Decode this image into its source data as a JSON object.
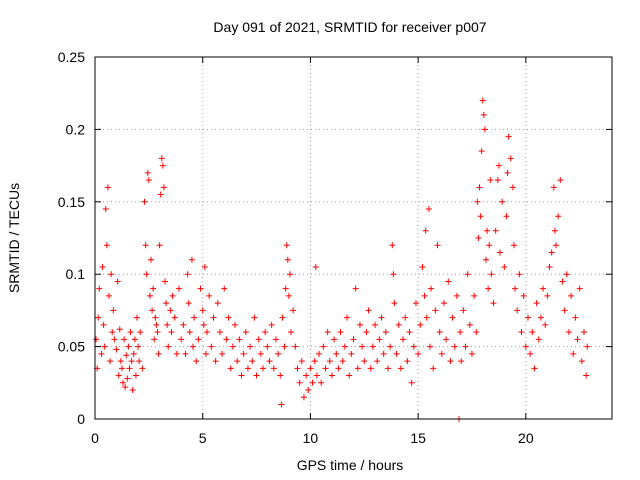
{
  "chart_data": {
    "type": "scatter",
    "title": "Day 091 of 2021, SRMTID for receiver p007",
    "xlabel": "GPS time / hours",
    "ylabel": "SRMTID / TECUs",
    "xlim": [
      0,
      24
    ],
    "ylim": [
      0,
      0.25
    ],
    "xticks": [
      0,
      5,
      10,
      15,
      20
    ],
    "xtick_labels": [
      "0",
      "5",
      "10",
      "15",
      "20"
    ],
    "yticks": [
      0,
      0.05,
      0.1,
      0.15,
      0.2,
      0.25
    ],
    "ytick_labels": [
      "0",
      "0.05",
      "0.1",
      "0.15",
      "0.2",
      "0.25"
    ],
    "grid": true,
    "marker": "+",
    "color": "#ff0000",
    "series": [
      {
        "name": "SRMTID",
        "points": [
          [
            0.05,
            0.055
          ],
          [
            0.1,
            0.035
          ],
          [
            0.15,
            0.07
          ],
          [
            0.2,
            0.09
          ],
          [
            0.3,
            0.045
          ],
          [
            0.35,
            0.105
          ],
          [
            0.4,
            0.065
          ],
          [
            0.45,
            0.05
          ],
          [
            0.5,
            0.145
          ],
          [
            0.55,
            0.12
          ],
          [
            0.6,
            0.16
          ],
          [
            0.65,
            0.085
          ],
          [
            0.7,
            0.04
          ],
          [
            0.75,
            0.1
          ],
          [
            0.8,
            0.06
          ],
          [
            0.85,
            0.075
          ],
          [
            0.9,
            0.055
          ],
          [
            1.0,
            0.048
          ],
          [
            1.05,
            0.095
          ],
          [
            1.1,
            0.03
          ],
          [
            1.15,
            0.062
          ],
          [
            1.2,
            0.04
          ],
          [
            1.25,
            0.035
          ],
          [
            1.3,
            0.025
          ],
          [
            1.35,
            0.055
          ],
          [
            1.4,
            0.022
          ],
          [
            1.45,
            0.044
          ],
          [
            1.5,
            0.028
          ],
          [
            1.55,
            0.05
          ],
          [
            1.6,
            0.035
          ],
          [
            1.65,
            0.06
          ],
          [
            1.7,
            0.04
          ],
          [
            1.75,
            0.02
          ],
          [
            1.8,
            0.045
          ],
          [
            1.85,
            0.055
          ],
          [
            1.9,
            0.03
          ],
          [
            1.95,
            0.07
          ],
          [
            2.0,
            0.05
          ],
          [
            2.05,
            0.04
          ],
          [
            2.1,
            0.06
          ],
          [
            2.2,
            0.035
          ],
          [
            2.3,
            0.15
          ],
          [
            2.35,
            0.12
          ],
          [
            2.4,
            0.1
          ],
          [
            2.45,
            0.17
          ],
          [
            2.5,
            0.165
          ],
          [
            2.55,
            0.085
          ],
          [
            2.6,
            0.11
          ],
          [
            2.65,
            0.075
          ],
          [
            2.7,
            0.09
          ],
          [
            2.75,
            0.055
          ],
          [
            2.8,
            0.07
          ],
          [
            2.85,
            0.065
          ],
          [
            2.9,
            0.06
          ],
          [
            2.95,
            0.045
          ],
          [
            3.0,
            0.12
          ],
          [
            3.05,
            0.155
          ],
          [
            3.1,
            0.18
          ],
          [
            3.15,
            0.175
          ],
          [
            3.2,
            0.16
          ],
          [
            3.25,
            0.095
          ],
          [
            3.3,
            0.08
          ],
          [
            3.35,
            0.065
          ],
          [
            3.4,
            0.05
          ],
          [
            3.5,
            0.075
          ],
          [
            3.55,
            0.06
          ],
          [
            3.6,
            0.085
          ],
          [
            3.7,
            0.07
          ],
          [
            3.8,
            0.045
          ],
          [
            3.9,
            0.09
          ],
          [
            4.0,
            0.055
          ],
          [
            4.1,
            0.065
          ],
          [
            4.2,
            0.045
          ],
          [
            4.3,
            0.1
          ],
          [
            4.35,
            0.08
          ],
          [
            4.4,
            0.06
          ],
          [
            4.5,
            0.11
          ],
          [
            4.55,
            0.05
          ],
          [
            4.6,
            0.07
          ],
          [
            4.7,
            0.04
          ],
          [
            4.8,
            0.055
          ],
          [
            4.9,
            0.09
          ],
          [
            5.0,
            0.075
          ],
          [
            5.05,
            0.065
          ],
          [
            5.1,
            0.105
          ],
          [
            5.15,
            0.045
          ],
          [
            5.2,
            0.06
          ],
          [
            5.3,
            0.085
          ],
          [
            5.4,
            0.05
          ],
          [
            5.5,
            0.07
          ],
          [
            5.6,
            0.04
          ],
          [
            5.7,
            0.08
          ],
          [
            5.8,
            0.06
          ],
          [
            5.9,
            0.045
          ],
          [
            6.0,
            0.09
          ],
          [
            6.1,
            0.055
          ],
          [
            6.2,
            0.07
          ],
          [
            6.3,
            0.035
          ],
          [
            6.4,
            0.05
          ],
          [
            6.5,
            0.065
          ],
          [
            6.6,
            0.04
          ],
          [
            6.7,
            0.055
          ],
          [
            6.8,
            0.03
          ],
          [
            6.9,
            0.045
          ],
          [
            7.0,
            0.06
          ],
          [
            7.1,
            0.035
          ],
          [
            7.2,
            0.05
          ],
          [
            7.3,
            0.04
          ],
          [
            7.4,
            0.07
          ],
          [
            7.5,
            0.03
          ],
          [
            7.6,
            0.055
          ],
          [
            7.7,
            0.045
          ],
          [
            7.8,
            0.035
          ],
          [
            7.9,
            0.06
          ],
          [
            8.0,
            0.05
          ],
          [
            8.1,
            0.04
          ],
          [
            8.2,
            0.065
          ],
          [
            8.3,
            0.035
          ],
          [
            8.4,
            0.055
          ],
          [
            8.5,
            0.045
          ],
          [
            8.6,
            0.03
          ],
          [
            8.65,
            0.01
          ],
          [
            8.7,
            0.07
          ],
          [
            8.8,
            0.05
          ],
          [
            8.85,
            0.09
          ],
          [
            8.9,
            0.12
          ],
          [
            8.95,
            0.11
          ],
          [
            9.0,
            0.085
          ],
          [
            9.05,
            0.1
          ],
          [
            9.1,
            0.06
          ],
          [
            9.2,
            0.075
          ],
          [
            9.3,
            0.05
          ],
          [
            9.4,
            0.035
          ],
          [
            9.5,
            0.025
          ],
          [
            9.6,
            0.04
          ],
          [
            9.7,
            0.015
          ],
          [
            9.8,
            0.03
          ],
          [
            9.9,
            0.02
          ],
          [
            10.0,
            0.035
          ],
          [
            10.1,
            0.025
          ],
          [
            10.2,
            0.04
          ],
          [
            10.25,
            0.105
          ],
          [
            10.3,
            0.03
          ],
          [
            10.4,
            0.045
          ],
          [
            10.5,
            0.025
          ],
          [
            10.6,
            0.05
          ],
          [
            10.7,
            0.035
          ],
          [
            10.8,
            0.06
          ],
          [
            10.9,
            0.04
          ],
          [
            11.0,
            0.03
          ],
          [
            11.1,
            0.055
          ],
          [
            11.2,
            0.045
          ],
          [
            11.3,
            0.035
          ],
          [
            11.4,
            0.06
          ],
          [
            11.5,
            0.04
          ],
          [
            11.6,
            0.05
          ],
          [
            11.7,
            0.07
          ],
          [
            11.8,
            0.03
          ],
          [
            11.9,
            0.045
          ],
          [
            12.0,
            0.055
          ],
          [
            12.1,
            0.09
          ],
          [
            12.2,
            0.035
          ],
          [
            12.3,
            0.065
          ],
          [
            12.4,
            0.05
          ],
          [
            12.5,
            0.04
          ],
          [
            12.6,
            0.06
          ],
          [
            12.7,
            0.075
          ],
          [
            12.8,
            0.035
          ],
          [
            12.9,
            0.05
          ],
          [
            13.0,
            0.065
          ],
          [
            13.1,
            0.04
          ],
          [
            13.2,
            0.055
          ],
          [
            13.3,
            0.07
          ],
          [
            13.4,
            0.045
          ],
          [
            13.5,
            0.06
          ],
          [
            13.6,
            0.035
          ],
          [
            13.7,
            0.05
          ],
          [
            13.8,
            0.12
          ],
          [
            13.85,
            0.1
          ],
          [
            13.9,
            0.08
          ],
          [
            14.0,
            0.045
          ],
          [
            14.1,
            0.065
          ],
          [
            14.2,
            0.035
          ],
          [
            14.3,
            0.055
          ],
          [
            14.4,
            0.07
          ],
          [
            14.5,
            0.04
          ],
          [
            14.6,
            0.06
          ],
          [
            14.7,
            0.025
          ],
          [
            14.8,
            0.05
          ],
          [
            14.9,
            0.08
          ],
          [
            15.0,
            0.045
          ],
          [
            15.1,
            0.065
          ],
          [
            15.2,
            0.105
          ],
          [
            15.3,
            0.085
          ],
          [
            15.35,
            0.13
          ],
          [
            15.4,
            0.07
          ],
          [
            15.5,
            0.145
          ],
          [
            15.55,
            0.05
          ],
          [
            15.6,
            0.09
          ],
          [
            15.7,
            0.035
          ],
          [
            15.8,
            0.075
          ],
          [
            15.9,
            0.12
          ],
          [
            16.0,
            0.06
          ],
          [
            16.1,
            0.045
          ],
          [
            16.2,
            0.08
          ],
          [
            16.3,
            0.055
          ],
          [
            16.4,
            0.095
          ],
          [
            16.5,
            0.04
          ],
          [
            16.6,
            0.07
          ],
          [
            16.7,
            0.05
          ],
          [
            16.8,
            0.085
          ],
          [
            16.9,
            0.0
          ],
          [
            16.95,
            0.06
          ],
          [
            17.0,
            0.04
          ],
          [
            17.1,
            0.075
          ],
          [
            17.2,
            0.05
          ],
          [
            17.3,
            0.1
          ],
          [
            17.4,
            0.065
          ],
          [
            17.5,
            0.045
          ],
          [
            17.6,
            0.085
          ],
          [
            17.7,
            0.06
          ],
          [
            17.75,
            0.15
          ],
          [
            17.8,
            0.125
          ],
          [
            17.85,
            0.16
          ],
          [
            17.9,
            0.14
          ],
          [
            17.95,
            0.185
          ],
          [
            18.0,
            0.22
          ],
          [
            18.05,
            0.21
          ],
          [
            18.1,
            0.2
          ],
          [
            18.15,
            0.11
          ],
          [
            18.2,
            0.13
          ],
          [
            18.25,
            0.09
          ],
          [
            18.3,
            0.12
          ],
          [
            18.35,
            0.165
          ],
          [
            18.4,
            0.1
          ],
          [
            18.5,
            0.08
          ],
          [
            18.6,
            0.13
          ],
          [
            18.7,
            0.165
          ],
          [
            18.75,
            0.175
          ],
          [
            18.8,
            0.115
          ],
          [
            18.9,
            0.15
          ],
          [
            19.0,
            0.105
          ],
          [
            19.1,
            0.14
          ],
          [
            19.15,
            0.17
          ],
          [
            19.2,
            0.195
          ],
          [
            19.3,
            0.18
          ],
          [
            19.4,
            0.16
          ],
          [
            19.45,
            0.12
          ],
          [
            19.5,
            0.09
          ],
          [
            19.6,
            0.075
          ],
          [
            19.7,
            0.1
          ],
          [
            19.8,
            0.06
          ],
          [
            19.9,
            0.085
          ],
          [
            20.0,
            0.05
          ],
          [
            20.1,
            0.07
          ],
          [
            20.2,
            0.045
          ],
          [
            20.3,
            0.06
          ],
          [
            20.4,
            0.035
          ],
          [
            20.5,
            0.08
          ],
          [
            20.6,
            0.055
          ],
          [
            20.7,
            0.07
          ],
          [
            20.8,
            0.09
          ],
          [
            20.9,
            0.065
          ],
          [
            21.0,
            0.085
          ],
          [
            21.1,
            0.105
          ],
          [
            21.2,
            0.115
          ],
          [
            21.3,
            0.16
          ],
          [
            21.35,
            0.13
          ],
          [
            21.4,
            0.12
          ],
          [
            21.5,
            0.14
          ],
          [
            21.6,
            0.165
          ],
          [
            21.7,
            0.095
          ],
          [
            21.8,
            0.075
          ],
          [
            21.9,
            0.1
          ],
          [
            22.0,
            0.06
          ],
          [
            22.1,
            0.085
          ],
          [
            22.2,
            0.045
          ],
          [
            22.3,
            0.07
          ],
          [
            22.4,
            0.055
          ],
          [
            22.5,
            0.09
          ],
          [
            22.6,
            0.04
          ],
          [
            22.7,
            0.06
          ],
          [
            22.8,
            0.03
          ],
          [
            22.85,
            0.05
          ]
        ]
      }
    ]
  }
}
